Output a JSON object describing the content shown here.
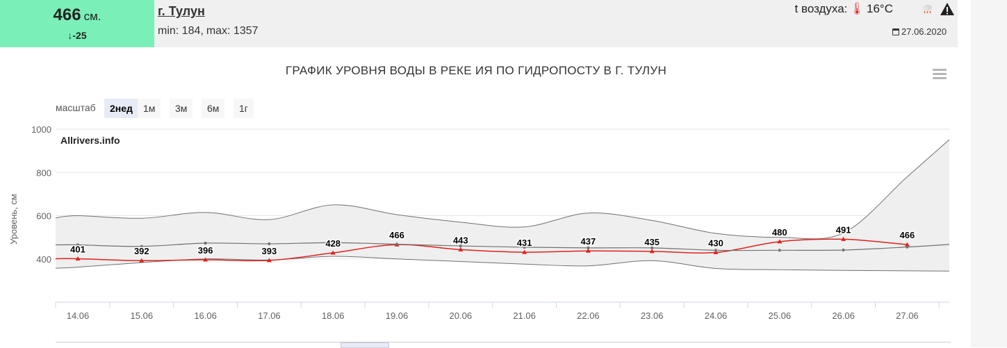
{
  "header": {
    "level_value": "466",
    "level_unit": "см.",
    "level_change": "↓-25",
    "station": "г. Тулун",
    "min_label": "min: 184,",
    "max_label": "max: 1357",
    "air_temp_label": "t воздуха:",
    "air_temp_value": "16°C",
    "date": "27.06.2020",
    "icons": {
      "thermometer": "thermometer-icon",
      "weather": "cloud-rain-icon",
      "warning": "warning-icon",
      "calendar": "calendar-icon"
    }
  },
  "scale": {
    "label": "масштаб",
    "buttons": [
      "2нед",
      "1м",
      "3м",
      "6м",
      "1г"
    ],
    "active": "2нед"
  },
  "chart_data": {
    "type": "line",
    "title": "ГРАФИК УРОВНЯ ВОДЫ В РЕКЕ ИЯ ПО ГИДРОПОСТУ В Г. ТУЛУН",
    "watermark": "Allrivers.info",
    "ylabel": "Уровень, см",
    "xlabel": "",
    "ylim": [
      200,
      1000
    ],
    "yticks": [
      400,
      600,
      800,
      1000
    ],
    "categories": [
      "14.06",
      "15.06",
      "16.06",
      "17.06",
      "18.06",
      "19.06",
      "20.06",
      "21.06",
      "22.06",
      "23.06",
      "24.06",
      "25.06",
      "26.06",
      "27.06"
    ],
    "series": [
      {
        "values": [
          401,
          392,
          396,
          393,
          428,
          466,
          443,
          431,
          437,
          435,
          430,
          480,
          491,
          466
        ],
        "color": "#e0201c",
        "labels": true
      },
      {
        "values": [
          465,
          458,
          473,
          470,
          475,
          468,
          460,
          454,
          451,
          451,
          440,
          440,
          441,
          455
        ],
        "color": "#707070"
      }
    ],
    "range_band": {
      "upper": [
        600,
        588,
        615,
        582,
        650,
        605,
        570,
        548,
        612,
        578,
        518,
        500,
        520,
        780
      ],
      "lower": [
        362,
        383,
        400,
        395,
        412,
        400,
        388,
        376,
        368,
        392,
        356,
        350,
        347,
        345
      ],
      "fill": "#efefef",
      "stroke": "#707070"
    },
    "grid": true,
    "legend": "none"
  }
}
